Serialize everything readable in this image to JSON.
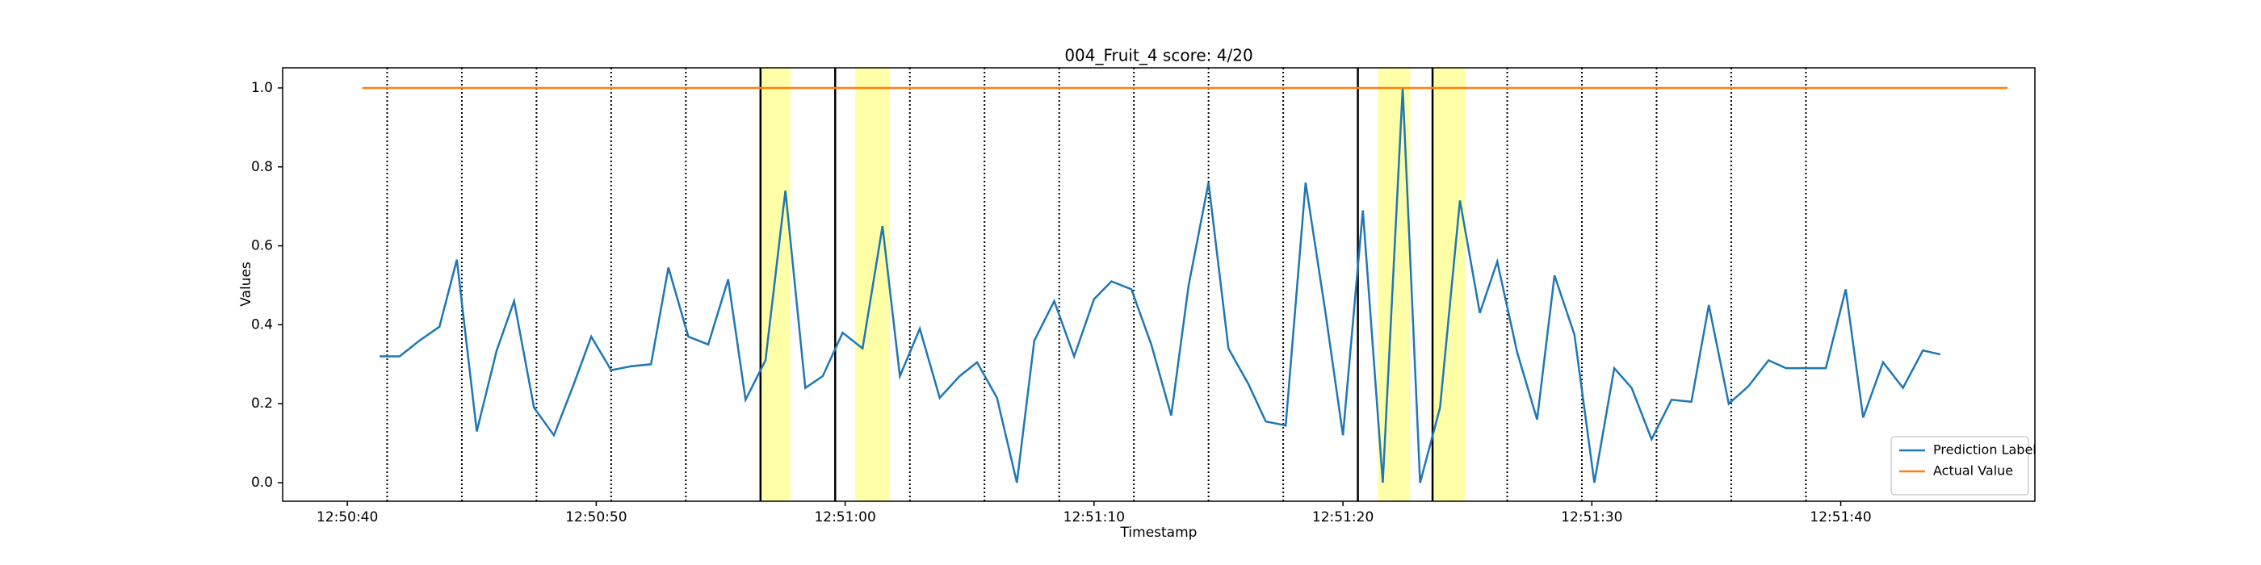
{
  "chart_data": {
    "type": "line",
    "title": "004_Fruit_4 score: 4/20",
    "x_label": "Timestamp",
    "y_label": "Values",
    "x": [
      46241.3,
      46242.1,
      46242.9,
      46243.7,
      46244.4,
      46245.2,
      46246.0,
      46246.7,
      46247.5,
      46248.3,
      46249.1,
      46249.8,
      46250.6,
      46251.4,
      46252.2,
      46252.9,
      46253.7,
      46254.5,
      46255.3,
      46256.0,
      46256.8,
      46257.6,
      46258.4,
      46259.1,
      46259.9,
      46260.7,
      46261.5,
      46262.2,
      46263.0,
      46263.8,
      46264.6,
      46265.3,
      46266.1,
      46266.9,
      46267.6,
      46268.4,
      46269.2,
      46270.0,
      46270.7,
      46271.5,
      46272.3,
      46273.1,
      46273.8,
      46274.6,
      46275.4,
      46276.2,
      46276.9,
      46277.7,
      46278.5,
      46279.3,
      46280.0,
      46280.8,
      46281.6,
      46282.4,
      46283.1,
      46283.9,
      46284.7,
      46285.5,
      46286.2,
      46287.0,
      46287.8,
      46288.5,
      46289.3,
      46290.1,
      46290.9,
      46291.6,
      46292.4,
      46293.2,
      46294.0,
      46294.7,
      46295.5,
      46296.3,
      46297.1,
      46297.8,
      46298.6,
      46299.4,
      46300.2,
      46300.9,
      46301.7,
      46302.5,
      46303.3,
      46304.0
    ],
    "series": [
      {
        "name": "Prediction Label",
        "color": "#1f77b4",
        "values": [
          0.32,
          0.32,
          0.36,
          0.395,
          0.565,
          0.13,
          0.335,
          0.46,
          0.19,
          0.12,
          0.25,
          0.37,
          0.285,
          0.295,
          0.3,
          0.545,
          0.37,
          0.35,
          0.515,
          0.21,
          0.31,
          0.74,
          0.24,
          0.27,
          0.38,
          0.34,
          0.65,
          0.27,
          0.39,
          0.215,
          0.27,
          0.305,
          0.215,
          0.0,
          0.36,
          0.46,
          0.32,
          0.465,
          0.51,
          0.49,
          0.35,
          0.17,
          0.5,
          0.76,
          0.34,
          0.25,
          0.155,
          0.145,
          0.76,
          0.43,
          0.12,
          0.69,
          0.0,
          1.0,
          0.0,
          0.19,
          0.715,
          0.43,
          0.56,
          0.33,
          0.16,
          0.525,
          0.375,
          0.0,
          0.29,
          0.24,
          0.11,
          0.21,
          0.205,
          0.45,
          0.2,
          0.245,
          0.31,
          0.29,
          0.29,
          0.29,
          0.49,
          0.165,
          0.305,
          0.24,
          0.335,
          0.325
        ]
      },
      {
        "name": "Actual Value",
        "color": "#ff7f0e",
        "x": [
          46240.6,
          46306.7
        ],
        "values": [
          1,
          1
        ]
      }
    ],
    "vlines": [
      {
        "x": 46241.6,
        "style": "dotted"
      },
      {
        "x": 46244.6,
        "style": "dotted"
      },
      {
        "x": 46247.6,
        "style": "dotted"
      },
      {
        "x": 46250.6,
        "style": "dotted"
      },
      {
        "x": 46253.6,
        "style": "dotted"
      },
      {
        "x": 46256.6,
        "style": "solid"
      },
      {
        "x": 46259.6,
        "style": "solid"
      },
      {
        "x": 46262.6,
        "style": "dotted"
      },
      {
        "x": 46265.6,
        "style": "dotted"
      },
      {
        "x": 46268.6,
        "style": "dotted"
      },
      {
        "x": 46271.6,
        "style": "dotted"
      },
      {
        "x": 46274.6,
        "style": "dotted"
      },
      {
        "x": 46277.6,
        "style": "dotted"
      },
      {
        "x": 46280.6,
        "style": "solid"
      },
      {
        "x": 46283.6,
        "style": "solid"
      },
      {
        "x": 46286.6,
        "style": "dotted"
      },
      {
        "x": 46289.6,
        "style": "dotted"
      },
      {
        "x": 46292.6,
        "style": "dotted"
      },
      {
        "x": 46295.6,
        "style": "dotted"
      },
      {
        "x": 46298.6,
        "style": "dotted"
      }
    ],
    "highlights": [
      {
        "start": 46256.6,
        "end": 46257.8
      },
      {
        "start": 46260.4,
        "end": 46261.8
      },
      {
        "start": 46281.4,
        "end": 46282.7
      },
      {
        "start": 46283.6,
        "end": 46284.9
      }
    ],
    "highlight_color": "#ffff99",
    "xlim": [
      46237.4,
      46307.8
    ],
    "xticks": [
      {
        "value": 46240,
        "label": "12:50:40"
      },
      {
        "value": 46250,
        "label": "12:50:50"
      },
      {
        "value": 46260,
        "label": "12:51:00"
      },
      {
        "value": 46270,
        "label": "12:51:10"
      },
      {
        "value": 46280,
        "label": "12:51:20"
      },
      {
        "value": 46290,
        "label": "12:51:30"
      },
      {
        "value": 46300,
        "label": "12:51:40"
      }
    ],
    "ylim": [
      -0.047,
      1.051
    ],
    "yticks": [
      {
        "value": 0,
        "label": "0.0"
      },
      0.2,
      0.4,
      0.6,
      0.8,
      {
        "value": 1,
        "label": "1.0"
      }
    ],
    "legend": "lower right"
  }
}
